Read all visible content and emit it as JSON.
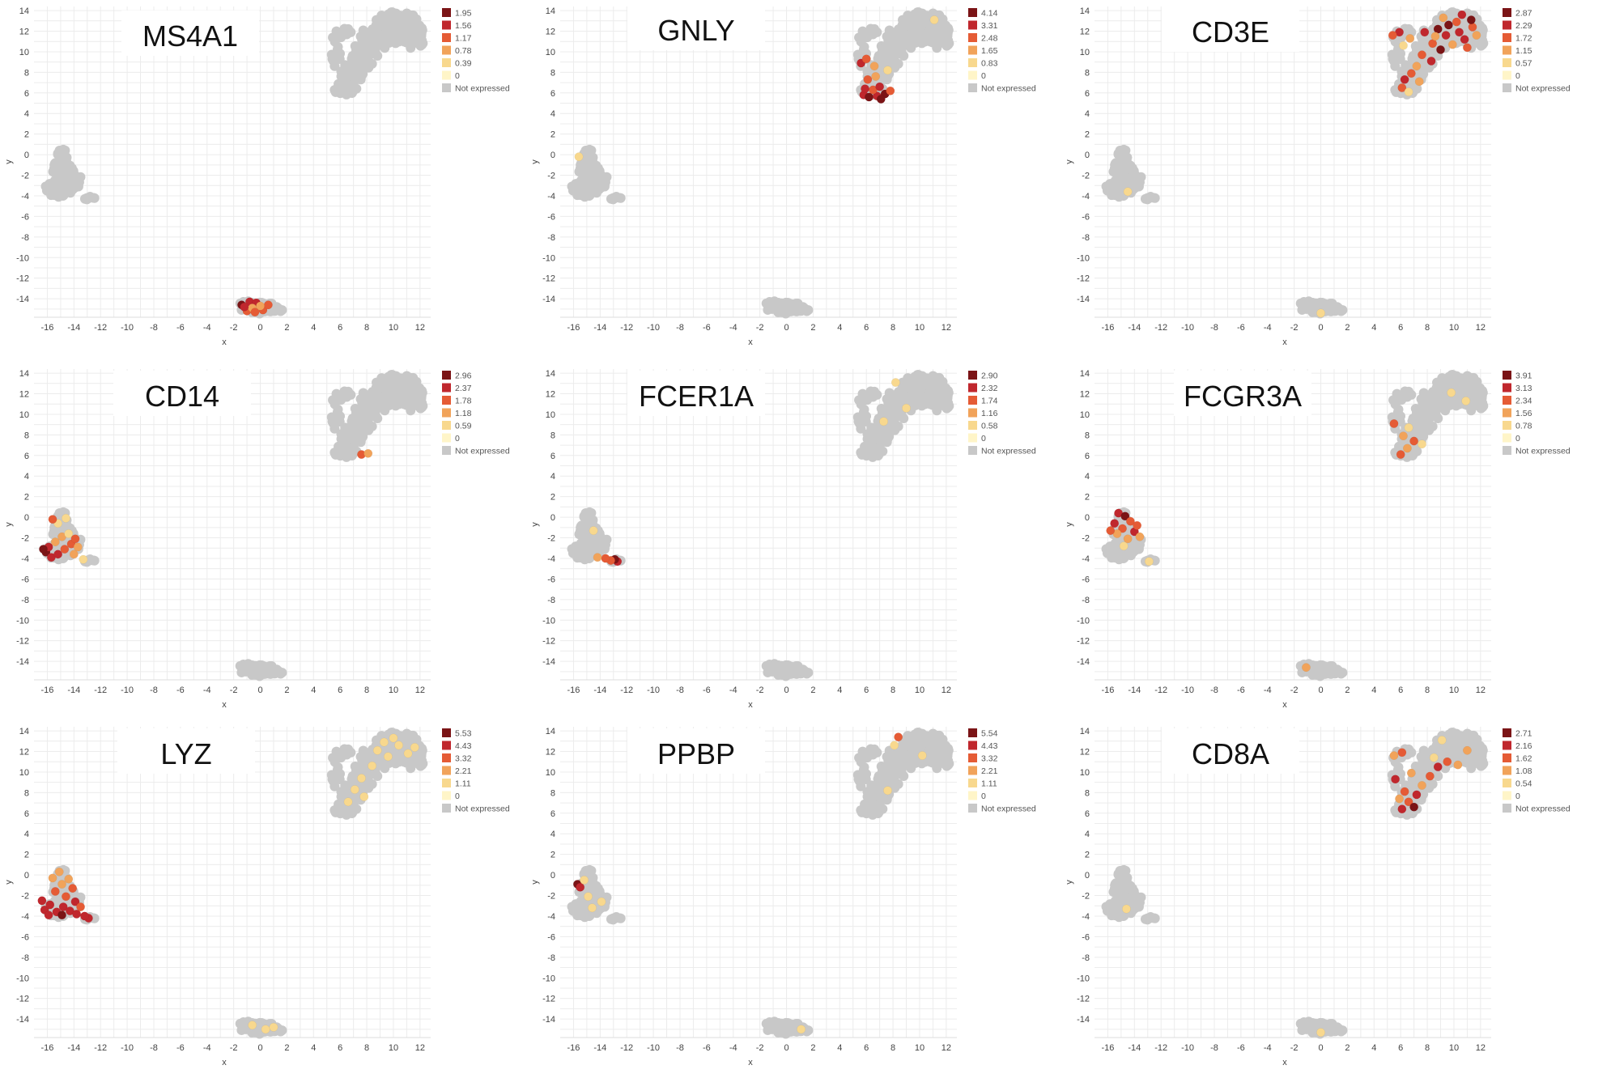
{
  "chart_data": [
    {
      "type": "scatter",
      "title": "MS4A1",
      "xlabel": "x",
      "ylabel": "y",
      "xlim": [
        -17,
        12.8
      ],
      "ylim": [
        -15.8,
        14.4
      ],
      "grid": true,
      "legend_position": "top-right",
      "legend": {
        "levels": [
          "1.95",
          "1.56",
          "1.17",
          "0.78",
          "0.39",
          "0"
        ],
        "not_expressed": "Not expressed"
      },
      "hot": [
        {
          "x": -1.4,
          "y": -14.6,
          "v": 1.95
        },
        {
          "x": -0.8,
          "y": -14.3,
          "v": 1.56
        },
        {
          "x": -1.0,
          "y": -15.2,
          "v": 1.17
        },
        {
          "x": -0.3,
          "y": -14.4,
          "v": 1.56
        },
        {
          "x": 0.2,
          "y": -15.1,
          "v": 1.17
        },
        {
          "x": -0.6,
          "y": -14.9,
          "v": 0.78
        },
        {
          "x": 0.6,
          "y": -14.6,
          "v": 1.17
        },
        {
          "x": -1.2,
          "y": -14.8,
          "v": 1.56
        },
        {
          "x": 0.0,
          "y": -14.7,
          "v": 0.78
        },
        {
          "x": -0.4,
          "y": -15.3,
          "v": 1.17
        }
      ]
    },
    {
      "type": "scatter",
      "title": "GNLY",
      "xlabel": "x",
      "ylabel": "y",
      "xlim": [
        -17,
        12.8
      ],
      "ylim": [
        -15.8,
        14.4
      ],
      "grid": true,
      "legend_position": "top-right",
      "legend": {
        "levels": [
          "4.14",
          "3.31",
          "2.48",
          "1.65",
          "0.83",
          "0"
        ],
        "not_expressed": "Not expressed"
      },
      "hot": [
        {
          "x": 5.8,
          "y": 5.8,
          "v": 3.31
        },
        {
          "x": 6.2,
          "y": 5.6,
          "v": 4.14
        },
        {
          "x": 6.8,
          "y": 5.7,
          "v": 3.31
        },
        {
          "x": 7.4,
          "y": 5.9,
          "v": 4.14
        },
        {
          "x": 6.5,
          "y": 6.3,
          "v": 2.48
        },
        {
          "x": 7.0,
          "y": 6.6,
          "v": 3.31
        },
        {
          "x": 5.9,
          "y": 6.4,
          "v": 3.31
        },
        {
          "x": 6.1,
          "y": 7.3,
          "v": 2.48
        },
        {
          "x": 6.7,
          "y": 7.6,
          "v": 1.65
        },
        {
          "x": 5.6,
          "y": 8.9,
          "v": 3.31
        },
        {
          "x": 6.0,
          "y": 9.3,
          "v": 2.48
        },
        {
          "x": 7.1,
          "y": 5.4,
          "v": 4.14
        },
        {
          "x": 7.8,
          "y": 6.2,
          "v": 2.48
        },
        {
          "x": 7.6,
          "y": 8.2,
          "v": 0.83
        },
        {
          "x": 6.6,
          "y": 8.6,
          "v": 1.65
        },
        {
          "x": 11.1,
          "y": 13.1,
          "v": 0.83
        },
        {
          "x": -15.6,
          "y": -0.2,
          "v": 0.83
        }
      ]
    },
    {
      "type": "scatter",
      "title": "CD3E",
      "xlabel": "x",
      "ylabel": "y",
      "xlim": [
        -17,
        12.8
      ],
      "ylim": [
        -15.8,
        14.4
      ],
      "grid": true,
      "legend_position": "top-right",
      "legend": {
        "levels": [
          "2.87",
          "2.29",
          "1.72",
          "1.15",
          "0.57",
          "0"
        ],
        "not_expressed": "Not expressed"
      },
      "hot": [
        {
          "x": 8.8,
          "y": 12.2,
          "v": 2.87
        },
        {
          "x": 9.4,
          "y": 11.6,
          "v": 2.29
        },
        {
          "x": 10.2,
          "y": 12.9,
          "v": 1.72
        },
        {
          "x": 10.8,
          "y": 11.2,
          "v": 2.29
        },
        {
          "x": 11.4,
          "y": 12.4,
          "v": 1.72
        },
        {
          "x": 9.2,
          "y": 13.3,
          "v": 1.15
        },
        {
          "x": 10.6,
          "y": 13.6,
          "v": 2.29
        },
        {
          "x": 8.4,
          "y": 10.8,
          "v": 1.72
        },
        {
          "x": 7.8,
          "y": 11.9,
          "v": 2.29
        },
        {
          "x": 9.0,
          "y": 10.2,
          "v": 2.87
        },
        {
          "x": 9.9,
          "y": 10.7,
          "v": 1.15
        },
        {
          "x": 11.0,
          "y": 10.4,
          "v": 1.72
        },
        {
          "x": 11.7,
          "y": 11.6,
          "v": 1.15
        },
        {
          "x": 7.6,
          "y": 9.7,
          "v": 1.72
        },
        {
          "x": 8.3,
          "y": 9.1,
          "v": 2.29
        },
        {
          "x": 7.2,
          "y": 8.6,
          "v": 1.15
        },
        {
          "x": 6.8,
          "y": 7.9,
          "v": 1.72
        },
        {
          "x": 6.3,
          "y": 7.3,
          "v": 2.29
        },
        {
          "x": 7.4,
          "y": 7.1,
          "v": 1.15
        },
        {
          "x": 6.1,
          "y": 6.5,
          "v": 1.72
        },
        {
          "x": 6.6,
          "y": 6.1,
          "v": 0.57
        },
        {
          "x": 5.9,
          "y": 11.9,
          "v": 2.29
        },
        {
          "x": 5.4,
          "y": 11.6,
          "v": 1.72
        },
        {
          "x": 6.7,
          "y": 11.3,
          "v": 1.15
        },
        {
          "x": 6.2,
          "y": 10.6,
          "v": 0.57
        },
        {
          "x": 9.6,
          "y": 12.6,
          "v": 2.87
        },
        {
          "x": 10.4,
          "y": 11.9,
          "v": 2.29
        },
        {
          "x": 8.6,
          "y": 11.5,
          "v": 1.15
        },
        {
          "x": 11.3,
          "y": 13.1,
          "v": 2.87
        },
        {
          "x": -14.5,
          "y": -3.6,
          "v": 0.57
        },
        {
          "x": 0.0,
          "y": -15.4,
          "v": 0.57
        }
      ]
    },
    {
      "type": "scatter",
      "title": "CD14",
      "xlabel": "x",
      "ylabel": "y",
      "xlim": [
        -17,
        12.8
      ],
      "ylim": [
        -15.8,
        14.4
      ],
      "grid": true,
      "legend_position": "top-right",
      "legend": {
        "levels": [
          "2.96",
          "2.37",
          "1.78",
          "1.18",
          "0.59",
          "0"
        ],
        "not_expressed": "Not expressed"
      },
      "hot": [
        {
          "x": -16.1,
          "y": -3.4,
          "v": 2.96
        },
        {
          "x": -15.7,
          "y": -3.9,
          "v": 2.37
        },
        {
          "x": -15.2,
          "y": -3.6,
          "v": 2.37
        },
        {
          "x": -14.7,
          "y": -3.1,
          "v": 1.78
        },
        {
          "x": -14.2,
          "y": -2.6,
          "v": 1.78
        },
        {
          "x": -15.4,
          "y": -2.4,
          "v": 1.18
        },
        {
          "x": -14.9,
          "y": -1.9,
          "v": 1.18
        },
        {
          "x": -14.4,
          "y": -1.6,
          "v": 0.59
        },
        {
          "x": -15.9,
          "y": -2.9,
          "v": 2.37
        },
        {
          "x": -16.3,
          "y": -3.1,
          "v": 2.96
        },
        {
          "x": -14.0,
          "y": -3.6,
          "v": 1.18
        },
        {
          "x": -13.7,
          "y": -2.9,
          "v": 1.18
        },
        {
          "x": -15.2,
          "y": -0.6,
          "v": 0.59
        },
        {
          "x": -14.6,
          "y": -0.1,
          "v": 0.59
        },
        {
          "x": -15.6,
          "y": -0.2,
          "v": 1.78
        },
        {
          "x": -13.3,
          "y": -4.1,
          "v": 0.59
        },
        {
          "x": -13.9,
          "y": -2.1,
          "v": 1.78
        },
        {
          "x": 7.6,
          "y": 6.1,
          "v": 1.78
        },
        {
          "x": 8.1,
          "y": 6.2,
          "v": 1.18
        }
      ]
    },
    {
      "type": "scatter",
      "title": "FCER1A",
      "xlabel": "x",
      "ylabel": "y",
      "xlim": [
        -17,
        12.8
      ],
      "ylim": [
        -15.8,
        14.4
      ],
      "grid": true,
      "legend_position": "top-right",
      "legend": {
        "levels": [
          "2.90",
          "2.32",
          "1.74",
          "1.16",
          "0.58",
          "0"
        ],
        "not_expressed": "Not expressed"
      },
      "hot": [
        {
          "x": -12.7,
          "y": -4.3,
          "v": 2.32
        },
        {
          "x": -12.9,
          "y": -4.1,
          "v": 2.9
        },
        {
          "x": -13.2,
          "y": -4.2,
          "v": 1.74
        },
        {
          "x": -13.6,
          "y": -4.0,
          "v": 1.74
        },
        {
          "x": -14.2,
          "y": -3.9,
          "v": 1.16
        },
        {
          "x": -14.5,
          "y": -1.3,
          "v": 0.58
        },
        {
          "x": 7.3,
          "y": 9.3,
          "v": 0.58
        },
        {
          "x": 8.2,
          "y": 13.1,
          "v": 0.58
        },
        {
          "x": 9.0,
          "y": 10.6,
          "v": 0.58
        }
      ]
    },
    {
      "type": "scatter",
      "title": "FCGR3A",
      "xlabel": "x",
      "ylabel": "y",
      "xlim": [
        -17,
        12.8
      ],
      "ylim": [
        -15.8,
        14.4
      ],
      "grid": true,
      "legend_position": "top-right",
      "legend": {
        "levels": [
          "3.91",
          "3.13",
          "2.34",
          "1.56",
          "0.78",
          "0"
        ],
        "not_expressed": "Not expressed"
      },
      "hot": [
        {
          "x": -15.2,
          "y": 0.4,
          "v": 3.13
        },
        {
          "x": -14.7,
          "y": 0.1,
          "v": 3.91
        },
        {
          "x": -14.3,
          "y": -0.4,
          "v": 2.34
        },
        {
          "x": -15.5,
          "y": -0.6,
          "v": 3.13
        },
        {
          "x": -14.9,
          "y": -1.1,
          "v": 2.34
        },
        {
          "x": -14.0,
          "y": -1.4,
          "v": 3.13
        },
        {
          "x": -15.3,
          "y": -1.6,
          "v": 1.56
        },
        {
          "x": -13.8,
          "y": -0.8,
          "v": 2.34
        },
        {
          "x": -14.5,
          "y": -2.1,
          "v": 1.56
        },
        {
          "x": -15.8,
          "y": -1.3,
          "v": 2.34
        },
        {
          "x": -13.6,
          "y": -1.9,
          "v": 1.56
        },
        {
          "x": -14.8,
          "y": -2.8,
          "v": 0.78
        },
        {
          "x": -12.9,
          "y": -4.3,
          "v": 0.78
        },
        {
          "x": 6.0,
          "y": 6.1,
          "v": 2.34
        },
        {
          "x": 6.5,
          "y": 6.7,
          "v": 1.56
        },
        {
          "x": 7.0,
          "y": 7.4,
          "v": 2.34
        },
        {
          "x": 6.2,
          "y": 7.9,
          "v": 1.56
        },
        {
          "x": 5.5,
          "y": 9.1,
          "v": 2.34
        },
        {
          "x": 6.6,
          "y": 8.7,
          "v": 0.78
        },
        {
          "x": 7.6,
          "y": 7.1,
          "v": 0.78
        },
        {
          "x": 9.8,
          "y": 12.1,
          "v": 0.78
        },
        {
          "x": 10.9,
          "y": 11.3,
          "v": 0.78
        },
        {
          "x": -1.1,
          "y": -14.6,
          "v": 1.56
        }
      ]
    },
    {
      "type": "scatter",
      "title": "LYZ",
      "xlabel": "x",
      "ylabel": "y",
      "xlim": [
        -17,
        12.8
      ],
      "ylim": [
        -15.8,
        14.4
      ],
      "grid": true,
      "legend_position": "top-right",
      "legend": {
        "levels": [
          "5.53",
          "4.43",
          "3.32",
          "2.21",
          "1.11",
          "0"
        ],
        "not_expressed": "Not expressed"
      },
      "hot": [
        {
          "x": -16.2,
          "y": -3.4,
          "v": 4.43
        },
        {
          "x": -15.8,
          "y": -2.9,
          "v": 4.43
        },
        {
          "x": -15.3,
          "y": -3.6,
          "v": 4.43
        },
        {
          "x": -14.8,
          "y": -3.1,
          "v": 4.43
        },
        {
          "x": -14.3,
          "y": -3.5,
          "v": 4.43
        },
        {
          "x": -13.9,
          "y": -2.6,
          "v": 4.43
        },
        {
          "x": -14.6,
          "y": -2.1,
          "v": 3.32
        },
        {
          "x": -15.4,
          "y": -1.6,
          "v": 3.32
        },
        {
          "x": -14.9,
          "y": -0.9,
          "v": 2.21
        },
        {
          "x": -14.4,
          "y": -0.4,
          "v": 2.21
        },
        {
          "x": -15.6,
          "y": -0.3,
          "v": 2.21
        },
        {
          "x": -14.1,
          "y": -1.3,
          "v": 3.32
        },
        {
          "x": -16.4,
          "y": -2.5,
          "v": 4.43
        },
        {
          "x": -15.9,
          "y": -3.9,
          "v": 4.43
        },
        {
          "x": -14.9,
          "y": -3.9,
          "v": 5.53
        },
        {
          "x": -13.8,
          "y": -3.8,
          "v": 4.43
        },
        {
          "x": -13.5,
          "y": -3.1,
          "v": 3.32
        },
        {
          "x": -12.9,
          "y": -4.2,
          "v": 4.43
        },
        {
          "x": -13.2,
          "y": -4.0,
          "v": 4.43
        },
        {
          "x": -15.1,
          "y": 0.3,
          "v": 2.21
        },
        {
          "x": 8.8,
          "y": 12.1,
          "v": 1.11
        },
        {
          "x": 9.6,
          "y": 11.5,
          "v": 1.11
        },
        {
          "x": 10.4,
          "y": 12.6,
          "v": 1.11
        },
        {
          "x": 11.1,
          "y": 11.8,
          "v": 1.11
        },
        {
          "x": 10.0,
          "y": 13.3,
          "v": 1.11
        },
        {
          "x": 8.4,
          "y": 10.6,
          "v": 1.11
        },
        {
          "x": 7.6,
          "y": 9.4,
          "v": 1.11
        },
        {
          "x": 7.1,
          "y": 8.3,
          "v": 1.11
        },
        {
          "x": 6.6,
          "y": 7.1,
          "v": 1.11
        },
        {
          "x": 7.8,
          "y": 7.6,
          "v": 1.11
        },
        {
          "x": 11.6,
          "y": 12.4,
          "v": 1.11
        },
        {
          "x": 9.3,
          "y": 12.9,
          "v": 1.11
        },
        {
          "x": -0.6,
          "y": -14.6,
          "v": 1.11
        },
        {
          "x": 0.4,
          "y": -15.0,
          "v": 1.11
        },
        {
          "x": 1.0,
          "y": -14.8,
          "v": 1.11
        }
      ]
    },
    {
      "type": "scatter",
      "title": "PPBP",
      "xlabel": "x",
      "ylabel": "y",
      "xlim": [
        -17,
        12.8
      ],
      "ylim": [
        -15.8,
        14.4
      ],
      "grid": true,
      "legend_position": "top-right",
      "legend": {
        "levels": [
          "5.54",
          "4.43",
          "3.32",
          "2.21",
          "1.11",
          "0"
        ],
        "not_expressed": "Not expressed"
      },
      "hot": [
        {
          "x": -15.7,
          "y": -0.9,
          "v": 5.54
        },
        {
          "x": -15.5,
          "y": -1.2,
          "v": 4.43
        },
        {
          "x": -15.2,
          "y": -0.5,
          "v": 1.11
        },
        {
          "x": -14.9,
          "y": -2.1,
          "v": 1.11
        },
        {
          "x": -14.6,
          "y": -3.2,
          "v": 1.11
        },
        {
          "x": -13.9,
          "y": -2.6,
          "v": 1.11
        },
        {
          "x": 7.6,
          "y": 8.2,
          "v": 1.11
        },
        {
          "x": 8.1,
          "y": 12.6,
          "v": 1.11
        },
        {
          "x": 10.2,
          "y": 11.6,
          "v": 1.11
        },
        {
          "x": 1.1,
          "y": -15.0,
          "v": 1.11
        },
        {
          "x": 8.4,
          "y": 13.4,
          "v": 3.32
        }
      ]
    },
    {
      "type": "scatter",
      "title": "CD8A",
      "xlabel": "x",
      "ylabel": "y",
      "xlim": [
        -17,
        12.8
      ],
      "ylim": [
        -15.8,
        14.4
      ],
      "grid": true,
      "legend_position": "top-right",
      "legend": {
        "levels": [
          "2.71",
          "2.16",
          "1.62",
          "1.08",
          "0.54",
          "0"
        ],
        "not_expressed": "Not expressed"
      },
      "hot": [
        {
          "x": 6.1,
          "y": 6.4,
          "v": 2.16
        },
        {
          "x": 6.6,
          "y": 7.1,
          "v": 1.62
        },
        {
          "x": 7.2,
          "y": 7.8,
          "v": 2.16
        },
        {
          "x": 6.3,
          "y": 8.1,
          "v": 1.62
        },
        {
          "x": 7.6,
          "y": 8.7,
          "v": 1.08
        },
        {
          "x": 5.6,
          "y": 9.3,
          "v": 2.16
        },
        {
          "x": 6.1,
          "y": 11.9,
          "v": 1.62
        },
        {
          "x": 5.5,
          "y": 11.6,
          "v": 1.08
        },
        {
          "x": 8.2,
          "y": 9.6,
          "v": 1.62
        },
        {
          "x": 8.8,
          "y": 10.5,
          "v": 2.16
        },
        {
          "x": 9.5,
          "y": 11.0,
          "v": 1.62
        },
        {
          "x": 10.3,
          "y": 10.7,
          "v": 1.08
        },
        {
          "x": 8.5,
          "y": 11.4,
          "v": 0.54
        },
        {
          "x": 7.0,
          "y": 6.6,
          "v": 2.71
        },
        {
          "x": 5.9,
          "y": 7.4,
          "v": 1.08
        },
        {
          "x": 6.8,
          "y": 9.9,
          "v": 1.08
        },
        {
          "x": 9.1,
          "y": 13.1,
          "v": 0.54
        },
        {
          "x": 11.0,
          "y": 12.1,
          "v": 1.08
        },
        {
          "x": -14.6,
          "y": -3.3,
          "v": 0.54
        },
        {
          "x": 0.0,
          "y": -15.3,
          "v": 0.54
        }
      ]
    }
  ],
  "colors": {
    "not_expressed": "#c8c8c8",
    "zero": "#fff5c8",
    "levels": [
      "#7b1416",
      "#c0272d",
      "#e55b35",
      "#f1a35a",
      "#f8d88e",
      "#fff5c8"
    ],
    "grid": "#ececec"
  }
}
